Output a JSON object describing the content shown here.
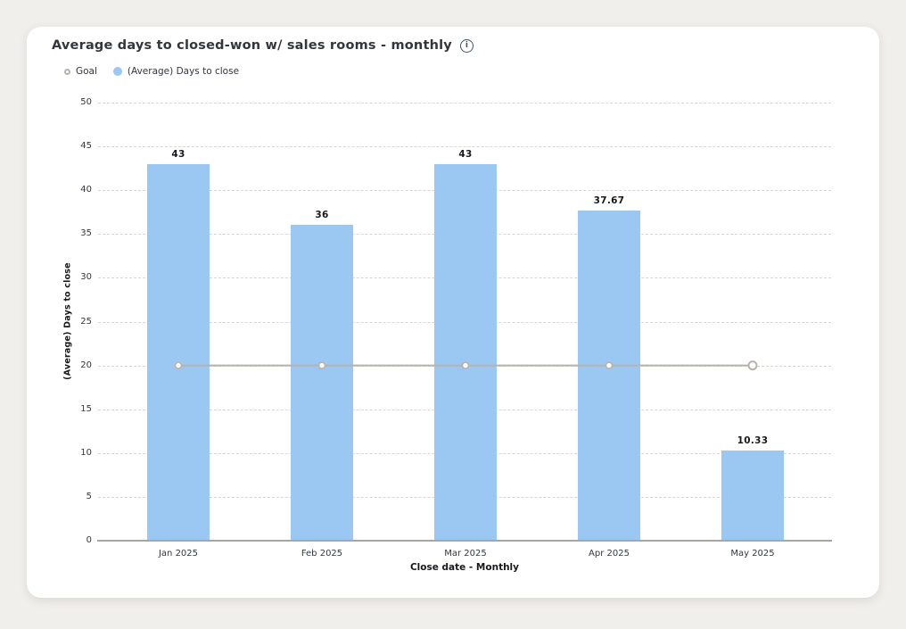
{
  "page": {
    "background": "#f1efeb"
  },
  "card": {
    "title": "Average days to closed-won w/ sales rooms - monthly"
  },
  "icons": {
    "info": "i"
  },
  "legend": [
    {
      "label": "Goal",
      "marker": "open-circle",
      "color": "#b7b3ac"
    },
    {
      "label": "(Average) Days to close",
      "marker": "filled-circle",
      "color": "#9ac8f2"
    }
  ],
  "chart_data": {
    "type": "bar",
    "title": "Average days to closed-won w/ sales rooms - monthly",
    "categories": [
      "Jan 2025",
      "Feb 2025",
      "Mar 2025",
      "Apr 2025",
      "May 2025"
    ],
    "series": [
      {
        "name": "(Average) Days to close",
        "type": "bar",
        "values": [
          43,
          36,
          43,
          37.67,
          10.33
        ],
        "color": "#9ac8f2"
      },
      {
        "name": "Goal",
        "type": "line",
        "values": [
          20,
          20,
          20,
          20,
          20
        ],
        "color": "#b7b3ac"
      }
    ],
    "data_labels": [
      "43",
      "36",
      "43",
      "37.67",
      "10.33"
    ],
    "xlabel": "Close date - Monthly",
    "ylabel": "(Average) Days to close",
    "ylim": [
      0,
      50
    ],
    "yticks": [
      0,
      5,
      10,
      15,
      20,
      25,
      30,
      35,
      40,
      45,
      50
    ],
    "grid": "dashed-horizontal",
    "legend_position": "top-left"
  }
}
